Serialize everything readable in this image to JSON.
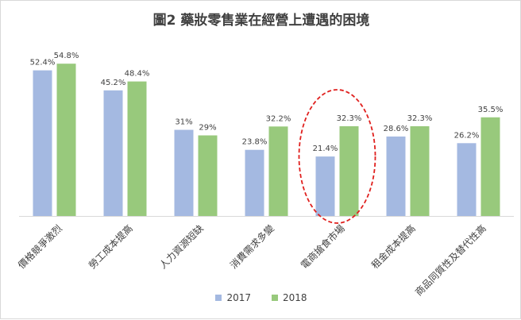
{
  "chart_data": {
    "type": "bar",
    "title": "圖2 藥妝零售業在經營上遭遇的困境",
    "categories": [
      "價格競爭激烈",
      "勞工成本提高",
      "人力資源短缺",
      "消費需求多變",
      "電商搶食市場",
      "租金成本提高",
      "商品同質性及替代性高"
    ],
    "series": [
      {
        "name": "2017",
        "values": [
          52.4,
          45.2,
          31,
          23.8,
          21.4,
          28.6,
          26.2
        ],
        "labels": [
          "52.4%",
          "45.2%",
          "31%",
          "23.8%",
          "21.4%",
          "28.6%",
          "26.2%"
        ],
        "color": "#a4b9e1"
      },
      {
        "name": "2018",
        "values": [
          54.8,
          48.4,
          29,
          32.2,
          32.3,
          32.3,
          35.5
        ],
        "labels": [
          "54.8%",
          "48.4%",
          "29%",
          "32.2%",
          "32.3%",
          "32.3%",
          "35.5%"
        ],
        "color": "#98c97c"
      }
    ],
    "ylim": [
      0,
      60
    ],
    "grid": false,
    "legend": "bottom",
    "highlight": {
      "category_index": 4,
      "shape": "dashed-ellipse",
      "color": "#e0201e"
    }
  }
}
